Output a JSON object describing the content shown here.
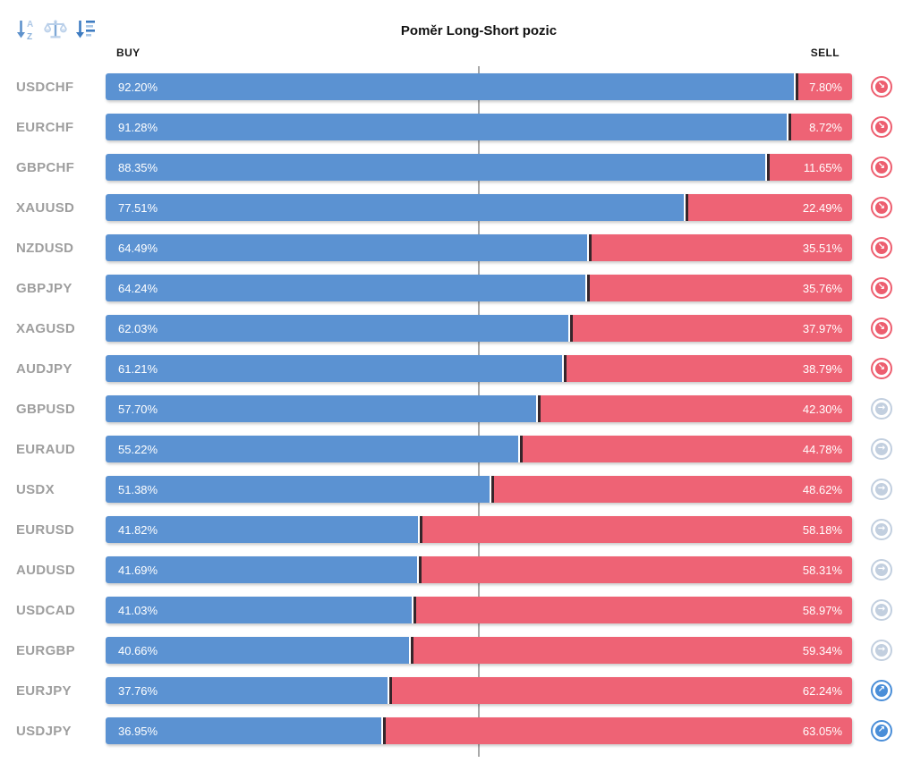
{
  "toolbar": {
    "sort_alpha_icon": "sort-alphabetical",
    "balance_icon": "balance-scale",
    "sort_amount_icon": "sort-by-value"
  },
  "header": {
    "title": "Poměr Long-Short pozic",
    "buy_label": "BUY",
    "sell_label": "SELL"
  },
  "colors": {
    "buy_bar": "#5b92d2",
    "sell_bar": "#ee6375",
    "segment_divider": "#35262b",
    "center_line": "#a9a9a9",
    "row_label": "#9e9e9e",
    "signal_down": "#ed5e6f",
    "signal_neutral": "#c2cfdf",
    "signal_up": "#4a8ed8"
  },
  "signal_icons": {
    "down": {
      "name": "sell-signal-icon",
      "glyph": "↘"
    },
    "neutral": {
      "name": "neutral-signal-icon",
      "glyph": "→"
    },
    "up": {
      "name": "buy-signal-icon",
      "glyph": "↗"
    }
  },
  "chart_data": {
    "type": "bar",
    "orientation": "horizontal-stacked",
    "title": "Poměr Long-Short pozic",
    "series_labels": [
      "BUY",
      "SELL"
    ],
    "xlim": [
      0,
      100
    ],
    "center_reference_pct": 50,
    "legend_position": "top",
    "grid": false,
    "rows": [
      {
        "symbol": "USDCHF",
        "buy": 92.2,
        "sell": 7.8,
        "buy_pct": "92.20%",
        "sell_pct": "7.80%",
        "signal": "down"
      },
      {
        "symbol": "EURCHF",
        "buy": 91.28,
        "sell": 8.72,
        "buy_pct": "91.28%",
        "sell_pct": "8.72%",
        "signal": "down"
      },
      {
        "symbol": "GBPCHF",
        "buy": 88.35,
        "sell": 11.65,
        "buy_pct": "88.35%",
        "sell_pct": "11.65%",
        "signal": "down"
      },
      {
        "symbol": "XAUUSD",
        "buy": 77.51,
        "sell": 22.49,
        "buy_pct": "77.51%",
        "sell_pct": "22.49%",
        "signal": "down"
      },
      {
        "symbol": "NZDUSD",
        "buy": 64.49,
        "sell": 35.51,
        "buy_pct": "64.49%",
        "sell_pct": "35.51%",
        "signal": "down"
      },
      {
        "symbol": "GBPJPY",
        "buy": 64.24,
        "sell": 35.76,
        "buy_pct": "64.24%",
        "sell_pct": "35.76%",
        "signal": "down"
      },
      {
        "symbol": "XAGUSD",
        "buy": 62.03,
        "sell": 37.97,
        "buy_pct": "62.03%",
        "sell_pct": "37.97%",
        "signal": "down"
      },
      {
        "symbol": "AUDJPY",
        "buy": 61.21,
        "sell": 38.79,
        "buy_pct": "61.21%",
        "sell_pct": "38.79%",
        "signal": "down"
      },
      {
        "symbol": "GBPUSD",
        "buy": 57.7,
        "sell": 42.3,
        "buy_pct": "57.70%",
        "sell_pct": "42.30%",
        "signal": "neutral"
      },
      {
        "symbol": "EURAUD",
        "buy": 55.22,
        "sell": 44.78,
        "buy_pct": "55.22%",
        "sell_pct": "44.78%",
        "signal": "neutral"
      },
      {
        "symbol": "USDX",
        "buy": 51.38,
        "sell": 48.62,
        "buy_pct": "51.38%",
        "sell_pct": "48.62%",
        "signal": "neutral"
      },
      {
        "symbol": "EURUSD",
        "buy": 41.82,
        "sell": 58.18,
        "buy_pct": "41.82%",
        "sell_pct": "58.18%",
        "signal": "neutral"
      },
      {
        "symbol": "AUDUSD",
        "buy": 41.69,
        "sell": 58.31,
        "buy_pct": "41.69%",
        "sell_pct": "58.31%",
        "signal": "neutral"
      },
      {
        "symbol": "USDCAD",
        "buy": 41.03,
        "sell": 58.97,
        "buy_pct": "41.03%",
        "sell_pct": "58.97%",
        "signal": "neutral"
      },
      {
        "symbol": "EURGBP",
        "buy": 40.66,
        "sell": 59.34,
        "buy_pct": "40.66%",
        "sell_pct": "59.34%",
        "signal": "neutral"
      },
      {
        "symbol": "EURJPY",
        "buy": 37.76,
        "sell": 62.24,
        "buy_pct": "37.76%",
        "sell_pct": "62.24%",
        "signal": "up"
      },
      {
        "symbol": "USDJPY",
        "buy": 36.95,
        "sell": 63.05,
        "buy_pct": "36.95%",
        "sell_pct": "63.05%",
        "signal": "up"
      }
    ]
  }
}
